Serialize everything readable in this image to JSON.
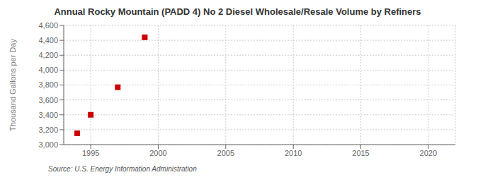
{
  "chart_data": {
    "type": "scatter",
    "title": "Annual Rocky Mountain (PADD 4) No 2 Diesel Wholesale/Resale Volume by Refiners",
    "ylabel": "Thousand Gallons per Day",
    "annotations": [
      "Source: U.S. Energy Information Administration"
    ],
    "x": [
      1994,
      1995,
      1997,
      1999
    ],
    "values": [
      3152,
      3400,
      3770,
      4440
    ],
    "color": "#cc0000",
    "marker": "square",
    "xlim": [
      1993,
      2022
    ],
    "xticks": [
      1995,
      2000,
      2005,
      2010,
      2015,
      2020
    ],
    "ylim": [
      3000,
      4600
    ],
    "yticks": [
      {
        "value": 3000,
        "label": "3,000"
      },
      {
        "value": 3200,
        "label": "3,200"
      },
      {
        "value": 3400,
        "label": "3,400"
      },
      {
        "value": 3600,
        "label": "3,600"
      },
      {
        "value": 3800,
        "label": "3,800"
      },
      {
        "value": 4000,
        "label": "4,000"
      },
      {
        "value": 4200,
        "label": "4,200"
      },
      {
        "value": 4400,
        "label": "4,400"
      },
      {
        "value": 4600,
        "label": "4,600"
      }
    ],
    "grid": true
  }
}
